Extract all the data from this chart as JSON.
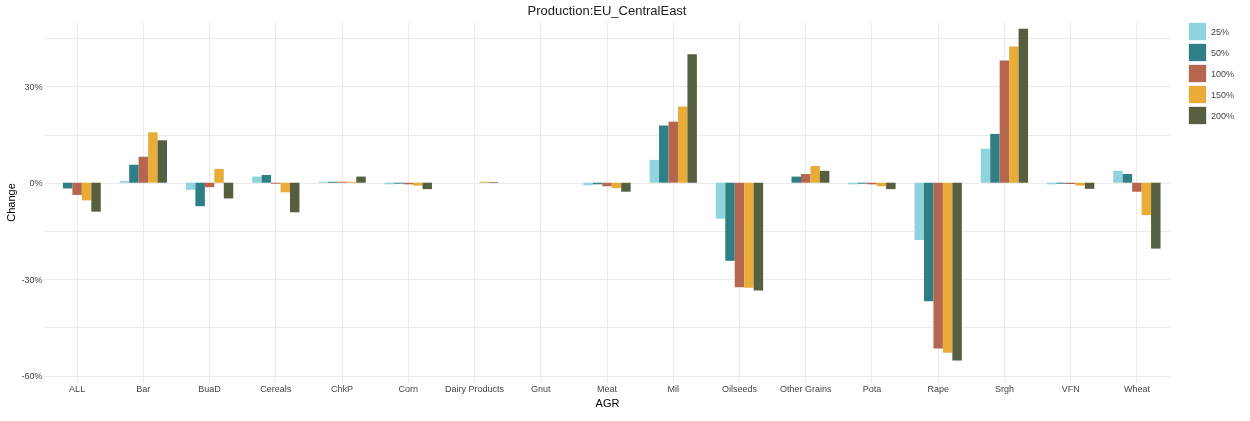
{
  "chart_data": {
    "type": "bar",
    "title": "Production:EU_CentralEast",
    "xlabel": "AGR",
    "ylabel": "Change",
    "categories": [
      "ALL",
      "Bar",
      "BuaD",
      "Cereals",
      "ChkP",
      "Corn",
      "Dairy Products",
      "Gnut",
      "Meat",
      "Mil",
      "Oilseeds",
      "Other Grains",
      "Pota",
      "Rape",
      "Srgh",
      "VFN",
      "Wheat"
    ],
    "series": [
      {
        "name": "25%",
        "color": "#8fd3dc",
        "values": [
          0,
          0.5,
          -2.2,
          1.9,
          0.3,
          -0.5,
          0,
          0,
          -0.8,
          7.1,
          -11.2,
          0,
          -0.5,
          -17.8,
          10.6,
          -0.5,
          3.7
        ]
      },
      {
        "name": "50%",
        "color": "#2e7f86",
        "values": [
          -1.8,
          5.6,
          -7.3,
          2.4,
          0.3,
          -0.3,
          0,
          0,
          -0.5,
          17.8,
          -24.3,
          1.9,
          -0.3,
          -36.9,
          15.2,
          -0.3,
          2.7
        ]
      },
      {
        "name": "100%",
        "color": "#b5664e",
        "values": [
          -3.8,
          8.1,
          -1.4,
          -0.3,
          0.3,
          -0.5,
          0,
          0,
          -1.1,
          19.0,
          -32.5,
          2.7,
          -0.5,
          -51.6,
          38.0,
          -0.4,
          -2.8
        ]
      },
      {
        "name": "150%",
        "color": "#e9ac37",
        "values": [
          -5.5,
          15.7,
          4.3,
          -3.0,
          0.3,
          -0.9,
          0.3,
          0,
          -1.7,
          23.7,
          -32.7,
          5.2,
          -1.1,
          -52.9,
          42.4,
          -0.9,
          -10.1
        ]
      },
      {
        "name": "200%",
        "color": "#566040",
        "values": [
          -9.0,
          13.2,
          -4.9,
          -9.2,
          1.9,
          -2.0,
          0.2,
          0,
          -2.8,
          40.0,
          -33.5,
          3.7,
          -2.0,
          -55.3,
          47.9,
          -1.9,
          -20.5
        ]
      }
    ],
    "ylim": [
      -62,
      50
    ],
    "yticks": [
      {
        "value": -60,
        "label": "-60%"
      },
      {
        "value": -45,
        "label": null
      },
      {
        "value": -30,
        "label": "-30%"
      },
      {
        "value": -15,
        "label": null
      },
      {
        "value": 0,
        "label": "0%"
      },
      {
        "value": 15,
        "label": null
      },
      {
        "value": 30,
        "label": "30%"
      },
      {
        "value": 45,
        "label": null
      }
    ],
    "grid": true,
    "legend": "right"
  }
}
